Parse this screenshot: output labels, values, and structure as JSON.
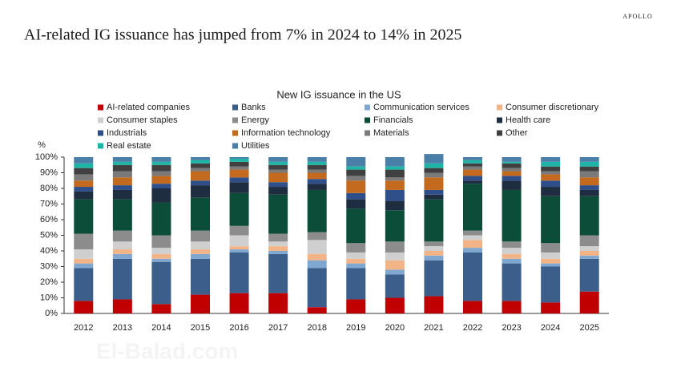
{
  "brand": "APOLLO",
  "headline": "AI-related IG issuance has jumped from 7% in 2024 to 14% in 2025",
  "watermark": "El-Balad.com",
  "chart_data": {
    "type": "stacked_bar",
    "title": "New IG issuance in the US",
    "y_unit_label": "%",
    "categories": [
      "2012",
      "2013",
      "2014",
      "2015",
      "2016",
      "2017",
      "2018",
      "2019",
      "2020",
      "2021",
      "2022",
      "2023",
      "2024",
      "2025"
    ],
    "ylim": [
      0,
      100
    ],
    "yticks": [
      {
        "value": 0,
        "label": "0%"
      },
      {
        "value": 10,
        "label": "10%"
      },
      {
        "value": 20,
        "label": "20%"
      },
      {
        "value": 30,
        "label": "30%"
      },
      {
        "value": 40,
        "label": "40%"
      },
      {
        "value": 50,
        "label": "50%"
      },
      {
        "value": 60,
        "label": "60%"
      },
      {
        "value": 70,
        "label": "70%"
      },
      {
        "value": 80,
        "label": "80%"
      },
      {
        "value": 90,
        "label": "90%"
      },
      {
        "value": 100,
        "label": "100%"
      }
    ],
    "legend_position": "top",
    "series": [
      {
        "name": "AI-related companies",
        "color": "#c00000",
        "values": [
          8,
          9,
          6,
          12,
          13,
          13,
          4,
          9,
          10,
          11,
          8,
          8,
          7,
          14
        ]
      },
      {
        "name": "Banks",
        "color": "#3b5f8a",
        "values": [
          21,
          26,
          27,
          23,
          26,
          25,
          25,
          20,
          15,
          23,
          31,
          24,
          23,
          21
        ]
      },
      {
        "name": "Communication services",
        "color": "#7fa7cf",
        "values": [
          3,
          3,
          2,
          3,
          2,
          2,
          5,
          3,
          3,
          3,
          3,
          3,
          2,
          2
        ]
      },
      {
        "name": "Consumer discretionary",
        "color": "#f2b487",
        "values": [
          3,
          3,
          3,
          3,
          2,
          3,
          4,
          3,
          6,
          3,
          5,
          3,
          3,
          3
        ]
      },
      {
        "name": "Consumer staples",
        "color": "#cfcfcf",
        "values": [
          6,
          5,
          4,
          5,
          7,
          3,
          9,
          4,
          5,
          3,
          3,
          4,
          4,
          3
        ]
      },
      {
        "name": "Energy",
        "color": "#8c8c8c",
        "values": [
          10,
          7,
          8,
          7,
          6,
          5,
          5,
          6,
          7,
          3,
          3,
          4,
          6,
          7
        ]
      },
      {
        "name": "Financials",
        "color": "#0b4d38",
        "values": [
          22,
          20,
          21,
          21,
          21,
          25,
          27,
          22,
          20,
          27,
          30,
          33,
          30,
          25
        ]
      },
      {
        "name": "Health care",
        "color": "#1f2d40",
        "values": [
          5,
          6,
          9,
          8,
          7,
          5,
          4,
          6,
          6,
          3,
          2,
          6,
          6,
          4
        ]
      },
      {
        "name": "Industrials",
        "color": "#2f4f8a",
        "values": [
          3,
          3,
          3,
          3,
          3,
          3,
          3,
          4,
          7,
          3,
          3,
          3,
          4,
          3
        ]
      },
      {
        "name": "Information technology",
        "color": "#c46a1e",
        "values": [
          4,
          5,
          5,
          6,
          5,
          6,
          4,
          8,
          6,
          8,
          4,
          3,
          4,
          5
        ]
      },
      {
        "name": "Materials",
        "color": "#7a7a7a",
        "values": [
          4,
          4,
          3,
          2,
          2,
          2,
          2,
          3,
          2,
          3,
          2,
          2,
          2,
          4
        ]
      },
      {
        "name": "Other",
        "color": "#404040",
        "values": [
          4,
          4,
          4,
          3,
          3,
          3,
          3,
          4,
          5,
          3,
          2,
          3,
          3,
          3
        ]
      },
      {
        "name": "Real estate",
        "color": "#1fb5a6",
        "values": [
          3,
          2,
          2,
          2,
          2,
          2,
          2,
          2,
          2,
          3,
          2,
          1,
          3,
          3
        ]
      },
      {
        "name": "Utilities",
        "color": "#4a7fa8",
        "values": [
          4,
          3,
          3,
          2,
          1,
          3,
          3,
          6,
          6,
          6,
          2,
          3,
          3,
          3
        ]
      }
    ]
  }
}
